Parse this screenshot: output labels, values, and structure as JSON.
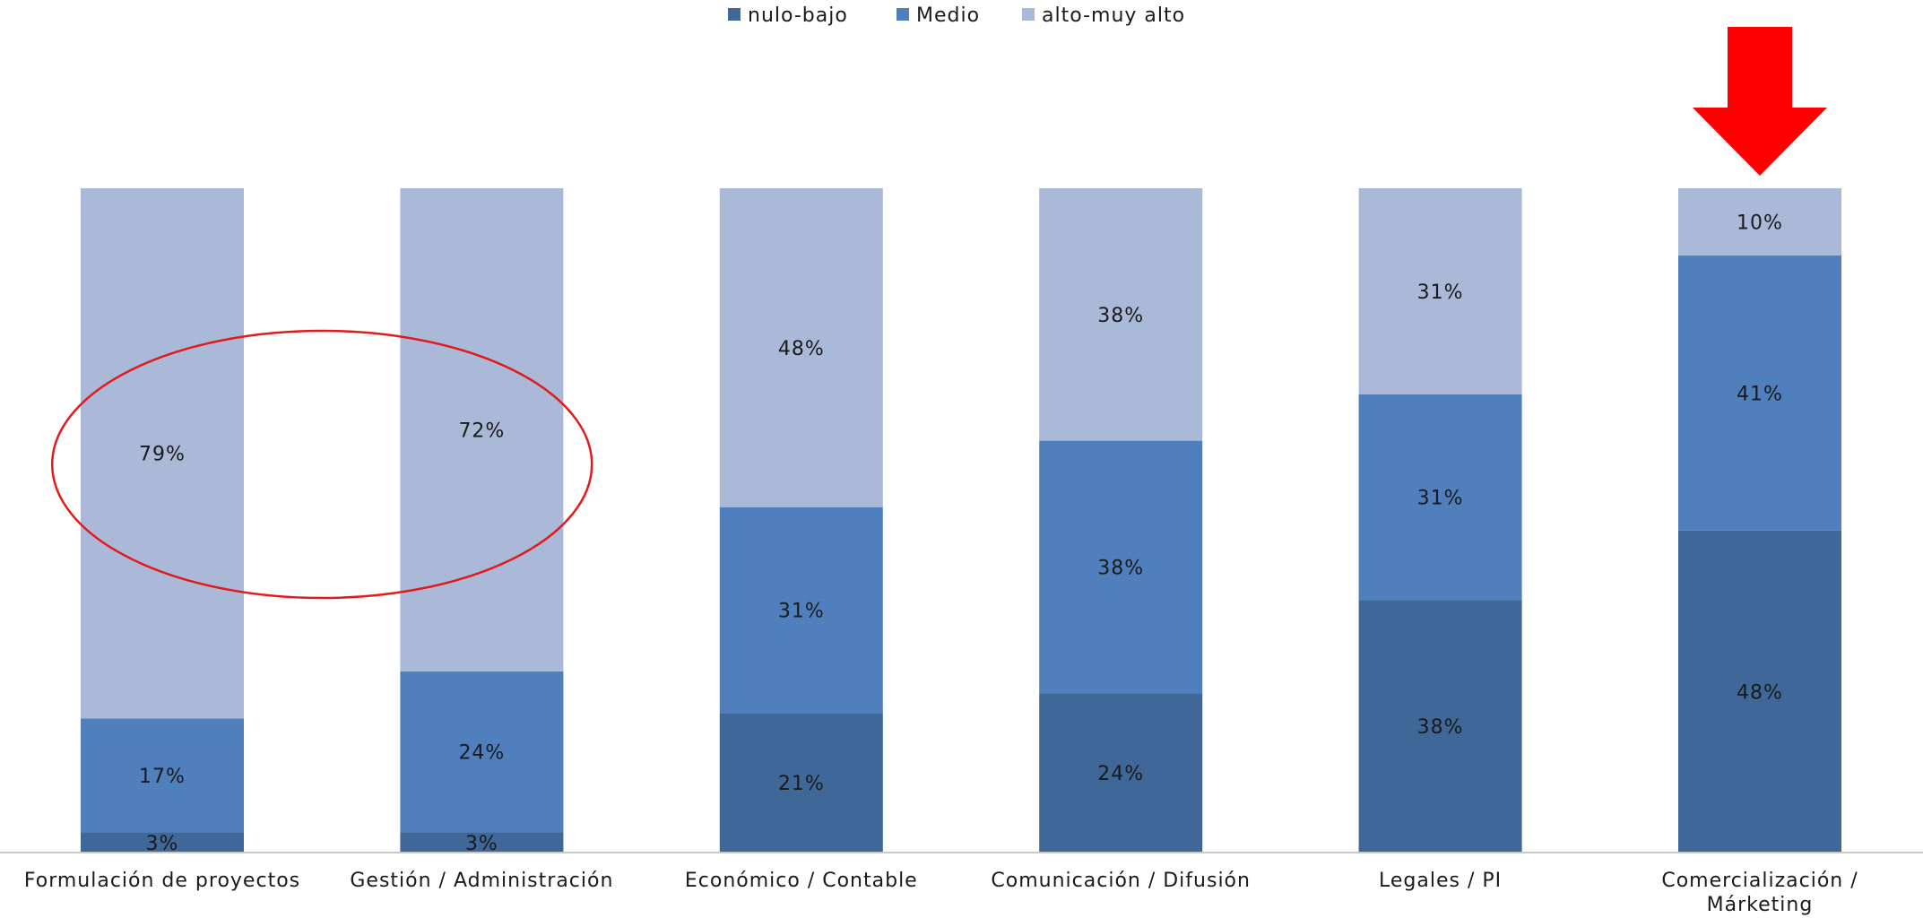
{
  "chart_data": {
    "type": "bar",
    "stacked": true,
    "categories": [
      "Formulación de proyectos",
      "Gestión / Administración",
      "Económico / Contable",
      "Comunicación / Difusión",
      "Legales / PI",
      "Comercialización / Márketing"
    ],
    "series": [
      {
        "name": "nulo-bajo",
        "color": "#3f6898",
        "values": [
          3,
          3,
          21,
          24,
          38,
          48
        ]
      },
      {
        "name": "Medio",
        "color": "#4f80bd",
        "values": [
          17,
          24,
          31,
          38,
          31,
          41
        ]
      },
      {
        "name": "alto-muy alto",
        "color": "#aab9d7",
        "values": [
          79,
          72,
          48,
          38,
          31,
          10
        ]
      }
    ],
    "value_labels": [
      [
        "3%",
        "3%",
        "21%",
        "24%",
        "38%",
        "48%"
      ],
      [
        "17%",
        "24%",
        "31%",
        "38%",
        "31%",
        "41%"
      ],
      [
        "79%",
        "72%",
        "48%",
        "38%",
        "31%",
        "10%"
      ]
    ],
    "ylim": [
      0,
      100
    ],
    "legend_position": "top-center",
    "grid": false,
    "annotations": [
      {
        "type": "ellipse",
        "color": "#e31a1c",
        "around_categories": [
          "Formulación de proyectos",
          "Gestión / Administración"
        ]
      },
      {
        "type": "down-arrow",
        "color": "#ff0000",
        "above_category": "Comercialización / Márketing"
      }
    ]
  }
}
